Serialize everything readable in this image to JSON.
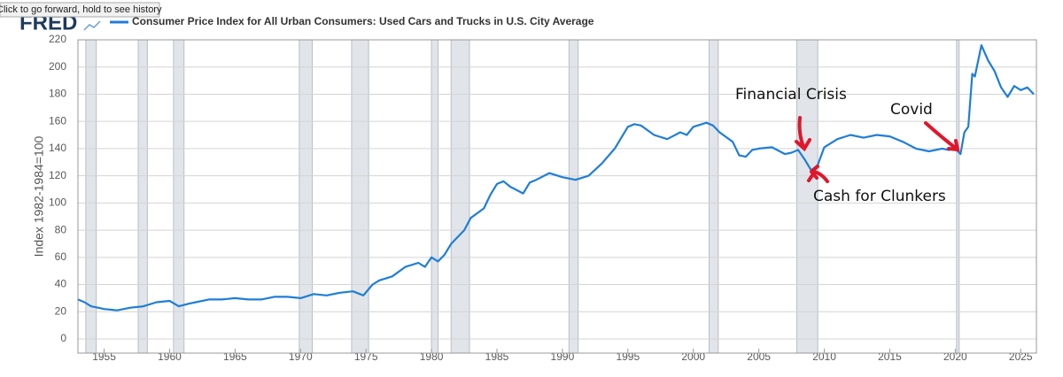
{
  "tooltip": "Click to go forward, hold to see history",
  "logo": "FRED",
  "chart_data": {
    "type": "line",
    "y_label": "Index 1982-1984=100",
    "xlim": [
      1953,
      2026.2
    ],
    "xticks": [
      1955,
      1960,
      1965,
      1970,
      1975,
      1980,
      1985,
      1990,
      1995,
      2000,
      2005,
      2010,
      2015,
      2020,
      2025
    ],
    "ylim": [
      0,
      220
    ],
    "yticks": [
      0,
      20,
      40,
      60,
      80,
      100,
      120,
      140,
      160,
      180,
      200,
      220
    ],
    "grid": true,
    "recessions": [
      [
        1953.6,
        1954.4
      ],
      [
        1957.6,
        1958.3
      ],
      [
        1960.3,
        1961.1
      ],
      [
        1969.9,
        1970.9
      ],
      [
        1973.9,
        1975.2
      ],
      [
        1980.0,
        1980.5
      ],
      [
        1981.5,
        1982.9
      ],
      [
        1990.5,
        1991.2
      ],
      [
        2001.2,
        2001.9
      ],
      [
        2007.9,
        2009.5
      ],
      [
        2020.1,
        2020.3
      ]
    ],
    "series": [
      {
        "name": "Consumer Price Index for All Urban Consumers: Used Cars and Trucks in U.S. City Average",
        "color": "#1f7ed8",
        "x": [
          1953,
          1953.5,
          1954,
          1955,
          1956,
          1957,
          1958,
          1959,
          1960,
          1960.7,
          1961.5,
          1962,
          1963,
          1964,
          1965,
          1966,
          1967,
          1968,
          1969,
          1970,
          1971,
          1972,
          1973,
          1974,
          1974.8,
          1975.5,
          1976,
          1977,
          1978,
          1979,
          1979.5,
          1980,
          1980.5,
          1981,
          1981.5,
          1982.5,
          1983,
          1984,
          1984.5,
          1985,
          1985.5,
          1986,
          1987,
          1987.5,
          1988,
          1989,
          1990,
          1991,
          1992,
          1993,
          1994,
          1994.5,
          1995,
          1995.5,
          1996,
          1997,
          1998,
          1999,
          1999.5,
          2000,
          2001,
          2001.5,
          2002,
          2003,
          2003.5,
          2004,
          2004.5,
          2005,
          2006,
          2007,
          2007.5,
          2008,
          2008.5,
          2009,
          2009.5,
          2010,
          2010.5,
          2011,
          2012,
          2013,
          2014,
          2015,
          2016,
          2017,
          2018,
          2019,
          2019.5,
          2020,
          2020.4,
          2020.7,
          2021,
          2021.3,
          2021.5,
          2022,
          2022.5,
          2023,
          2023.5,
          2024,
          2024.5,
          2025,
          2025.5,
          2026
        ],
        "values": [
          29,
          27,
          24,
          22,
          21,
          23,
          24,
          27,
          28,
          24,
          26,
          27,
          29,
          29,
          30,
          29,
          29,
          31,
          31,
          30,
          33,
          32,
          34,
          35,
          32,
          40,
          43,
          46,
          53,
          56,
          53,
          60,
          57,
          62,
          70,
          80,
          89,
          96,
          106,
          114,
          116,
          112,
          107,
          115,
          117,
          122,
          119,
          117,
          120,
          129,
          140,
          148,
          156,
          158,
          157,
          150,
          147,
          152,
          150,
          156,
          159,
          157,
          152,
          145,
          135,
          134,
          139,
          140,
          141,
          136,
          137,
          139,
          132,
          124,
          128,
          141,
          144,
          147,
          150,
          148,
          150,
          149,
          145,
          140,
          138,
          140,
          139,
          140,
          136,
          152,
          156,
          195,
          193,
          216,
          205,
          197,
          185,
          178,
          186,
          183,
          185,
          180
        ]
      }
    ],
    "annotations": [
      {
        "text": "Financial Crisis"
      },
      {
        "text": "Covid"
      },
      {
        "text": "Cash for Clunkers"
      }
    ]
  }
}
